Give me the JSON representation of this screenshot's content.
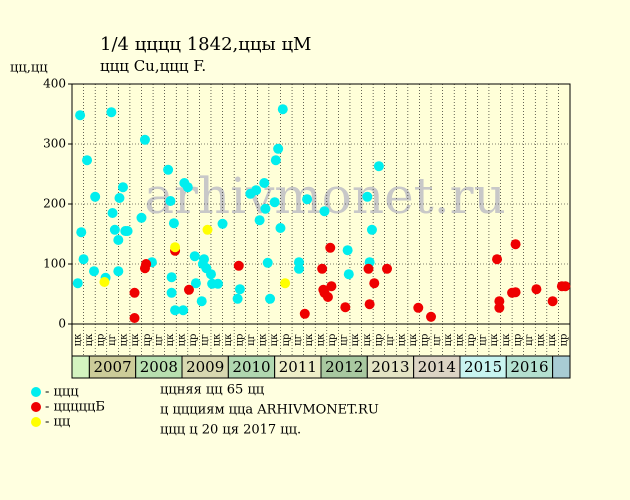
{
  "chart_data": {
    "type": "scatter",
    "title": "1/4 цццц 1842,ццы цМ",
    "subtitle": "ццц Cu,ццц F.",
    "y_label": "цц,цц",
    "watermark": "arhivmonet.ru",
    "xlim": [
      0,
      43
    ],
    "ylim": [
      0,
      400
    ],
    "yticks": [
      0,
      100,
      200,
      300,
      400
    ],
    "grid": true,
    "categories": [
      "цк",
      "цк",
      "цр",
      "цг",
      "цк",
      "цк",
      "цр",
      "цг",
      "цк",
      "цк",
      "цр",
      "цг",
      "цк",
      "цк",
      "цр",
      "цг",
      "цк",
      "цк",
      "цр",
      "цг",
      "цк",
      "цк",
      "цр",
      "цг",
      "цк",
      "цк",
      "цр",
      "цг",
      "цк",
      "цк",
      "цр",
      "цг",
      "цк",
      "цк",
      "цр",
      "цг",
      "цк",
      "цк",
      "цр",
      "цг",
      "цк",
      "цк",
      "цр"
    ],
    "years": [
      {
        "label": "2007",
        "color": "#cccc99"
      },
      {
        "label": "2008",
        "color": "#b8e0b0"
      },
      {
        "label": "2009",
        "color": "#d8d8b0"
      },
      {
        "label": "2010",
        "color": "#b0d8b0"
      },
      {
        "label": "2011",
        "color": "#eeeec8"
      },
      {
        "label": "2012",
        "color": "#a8c8a0"
      },
      {
        "label": "2013",
        "color": "#e4e4c4"
      },
      {
        "label": "2014",
        "color": "#dcd4c4"
      },
      {
        "label": "2015",
        "color": "#c8f4f0"
      },
      {
        "label": "2016",
        "color": "#b4e0d0"
      }
    ],
    "series": [
      {
        "name": "- ццц",
        "color": "#00eeee",
        "x": [
          0.5,
          0.7,
          0.8,
          1.0,
          1.3,
          1.9,
          2.0,
          2.9,
          3.4,
          3.5,
          3.7,
          4.0,
          4.0,
          4.1,
          4.4,
          4.6,
          4.8,
          6.0,
          6.3,
          6.9,
          8.3,
          8.5,
          8.6,
          8.6,
          8.8,
          8.9,
          9.6,
          9.7,
          10.0,
          10.6,
          10.7,
          11.2,
          11.3,
          11.4,
          11.6,
          12.0,
          12.1,
          12.6,
          13.0,
          14.3,
          14.5,
          15.4,
          15.9,
          16.2,
          16.6,
          16.7,
          16.9,
          17.1,
          17.5,
          17.6,
          17.8,
          18.0,
          18.2,
          19.6,
          19.6,
          20.3,
          21.8,
          23.8,
          23.9,
          25.5,
          25.7,
          25.9,
          26.5
        ],
        "values": [
          68,
          348,
          153,
          108,
          273,
          88,
          212,
          77,
          353,
          185,
          157,
          140,
          88,
          210,
          228,
          155,
          155,
          177,
          307,
          103,
          257,
          205,
          78,
          52,
          168,
          23,
          23,
          235,
          228,
          113,
          68,
          38,
          100,
          108,
          93,
          83,
          67,
          67,
          167,
          42,
          58,
          217,
          223,
          173,
          235,
          192,
          102,
          42,
          203,
          273,
          292,
          160,
          358,
          103,
          92,
          208,
          188,
          123,
          83,
          212,
          103,
          157,
          263
        ]
      },
      {
        "name": "- цццццБ",
        "color": "#ee0000",
        "x": [
          5.4,
          5.4,
          6.3,
          6.4,
          8.9,
          10.1,
          14.4,
          20.1,
          21.6,
          21.7,
          21.8,
          22.1,
          22.3,
          22.4,
          23.6,
          25.6,
          25.7,
          26.1,
          27.2,
          29.9,
          31.0,
          36.7,
          36.9,
          36.9,
          38.0,
          38.3,
          38.3,
          40.1,
          41.5,
          42.3,
          42.6
        ],
        "values": [
          10,
          52,
          93,
          100,
          122,
          57,
          97,
          17,
          92,
          57,
          52,
          45,
          127,
          63,
          28,
          92,
          33,
          68,
          92,
          27,
          12,
          108,
          38,
          27,
          52,
          53,
          133,
          58,
          38,
          63,
          63
        ]
      },
      {
        "name": "- цц",
        "color": "#ffff00",
        "x": [
          2.8,
          8.9,
          11.7,
          18.4
        ],
        "values": [
          70,
          128,
          157,
          68
        ]
      }
    ],
    "notes": [
      "ццняя цц 65 цц",
      "ц ццциям цца ARHIVMONET.RU",
      "ццц ц 20 ця 2017 цц."
    ]
  }
}
